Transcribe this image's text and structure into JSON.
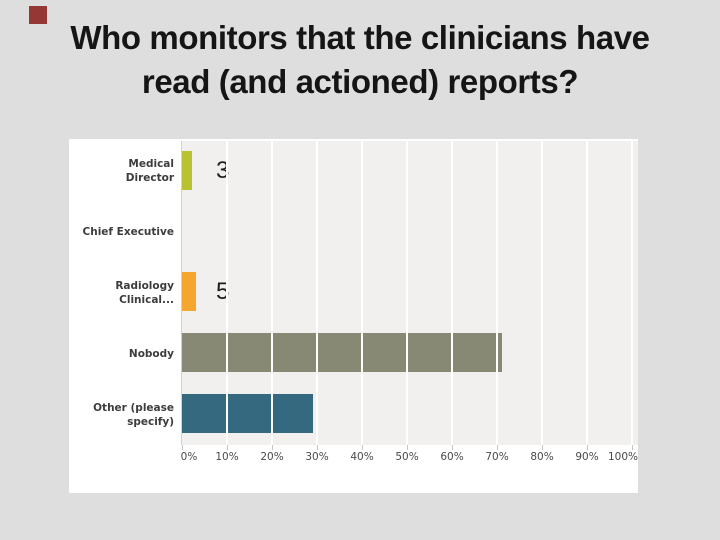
{
  "slide": {
    "title_lines": [
      "Who monitors that the clinicians have",
      "read (and actioned) reports?"
    ],
    "accent_square_color": "#953735",
    "background_color": "#dedede"
  },
  "chart_data": {
    "type": "bar",
    "orientation": "horizontal",
    "title": "",
    "xlabel": "",
    "ylabel": "",
    "xlim": [
      0,
      100
    ],
    "x_tick_labels": [
      "0%",
      "10%",
      "20%",
      "30%",
      "40%",
      "50%",
      "60%",
      "70%",
      "80%",
      "90%",
      "100%"
    ],
    "grid": "vertical white gridlines on light gray plot background",
    "legend": "none",
    "plot_background": "#f1f0ee",
    "categories": [
      "Medical Director",
      "Chief Executive",
      "Radiology Clinical...",
      "Nobody",
      "Other (please specify)"
    ],
    "values_percent": [
      2.2,
      0,
      3.2,
      71,
      29
    ],
    "bar_value_annotations": [
      "3",
      "",
      "5",
      "",
      ""
    ],
    "bar_colors": [
      "#b9c331",
      null,
      "#f4a62e",
      "#878974",
      "#34697f"
    ],
    "rows": [
      {
        "label_lines": [
          "Medical",
          "Director"
        ],
        "percent": 2.2,
        "annotation": "3",
        "color": "#b9c331"
      },
      {
        "label_lines": [
          "Chief Executive"
        ],
        "percent": 0,
        "annotation": "",
        "color": null
      },
      {
        "label_lines": [
          "Radiology",
          "Clinical..."
        ],
        "percent": 3.2,
        "annotation": "5",
        "color": "#f4a62e"
      },
      {
        "label_lines": [
          "Nobody"
        ],
        "percent": 71,
        "annotation": "",
        "color": "#878974"
      },
      {
        "label_lines": [
          "Other (please",
          "specify)"
        ],
        "percent": 29,
        "annotation": "",
        "color": "#34697f"
      }
    ]
  }
}
